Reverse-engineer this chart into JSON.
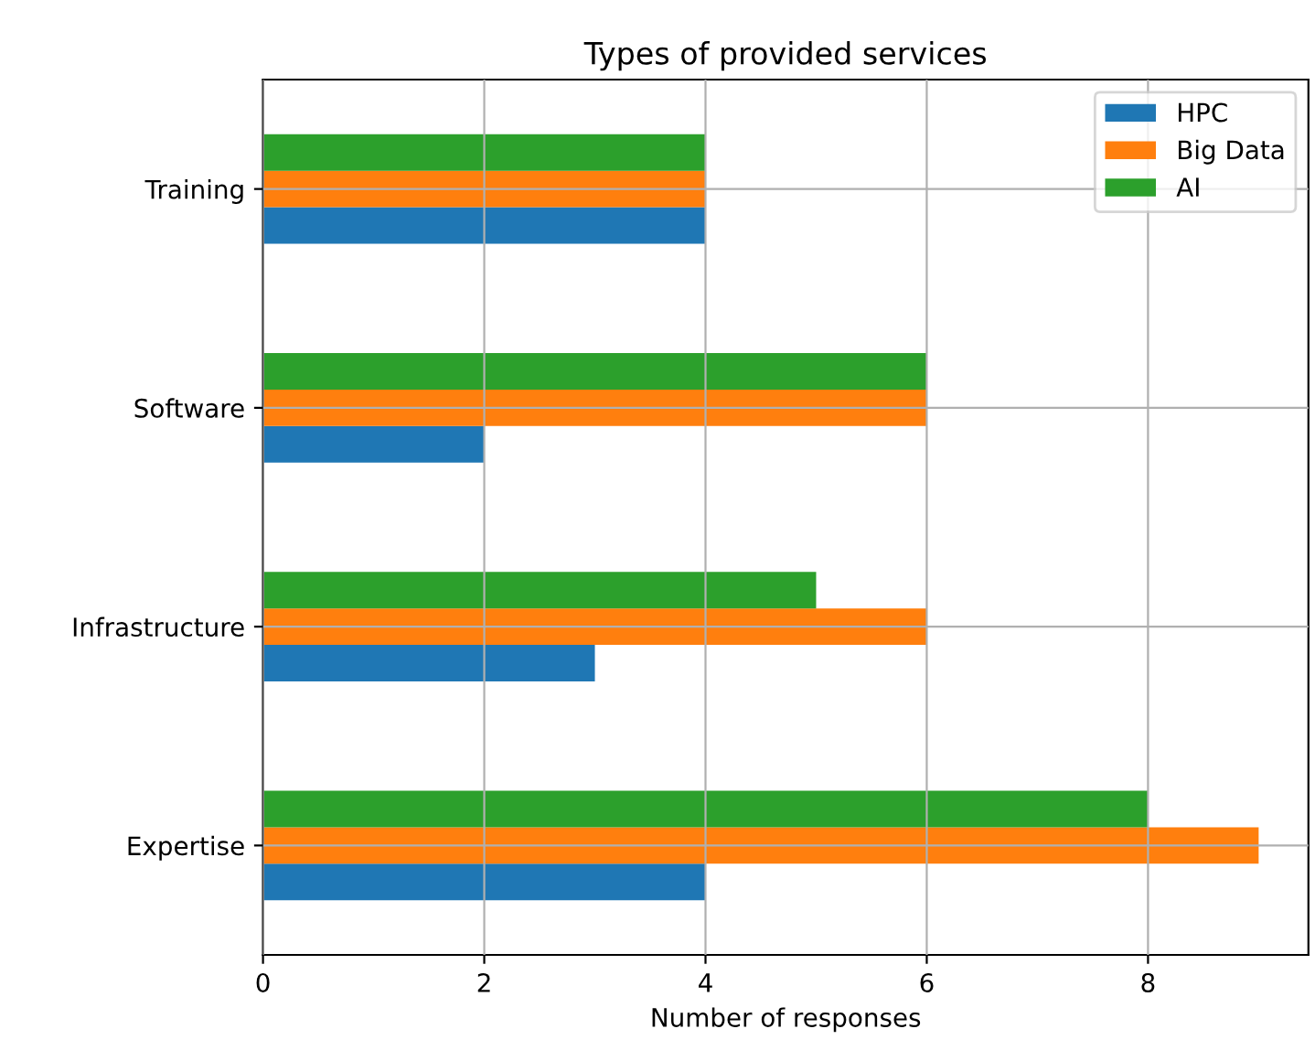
{
  "chart_data": {
    "type": "bar",
    "orientation": "horizontal",
    "title": "Types of provided services",
    "xlabel": "Number of responses",
    "categories": [
      "Training",
      "Software",
      "Infrastructure",
      "Expertise"
    ],
    "series": [
      {
        "name": "HPC",
        "color": "#1f77b4",
        "values": [
          4,
          2,
          3,
          4
        ]
      },
      {
        "name": "Big Data",
        "color": "#ff7f0e",
        "values": [
          4,
          6,
          6,
          9
        ]
      },
      {
        "name": "AI",
        "color": "#2ca02c",
        "values": [
          4,
          6,
          5,
          8
        ]
      }
    ],
    "xlim": [
      0,
      9.45
    ],
    "xticks": [
      0,
      2,
      4,
      6,
      8
    ],
    "grid": true,
    "legend": "top right"
  }
}
